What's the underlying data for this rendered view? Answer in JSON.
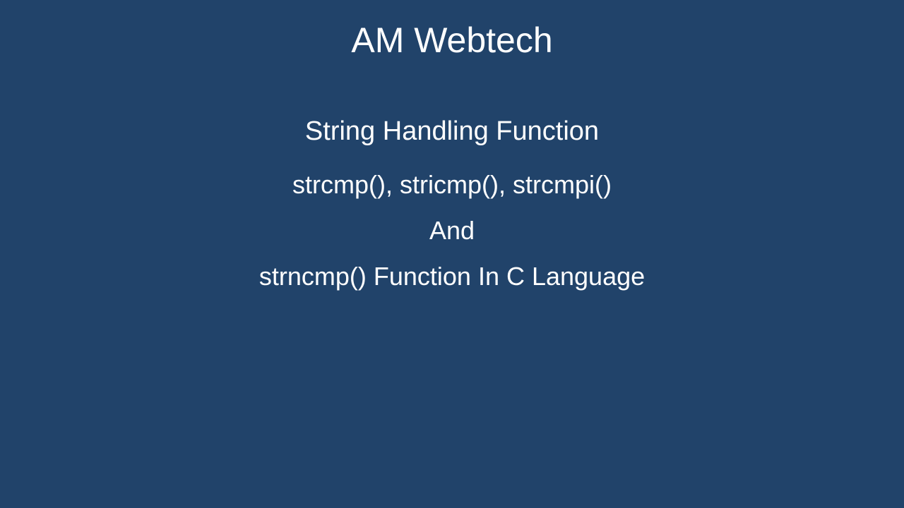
{
  "slide": {
    "title": "AM Webtech",
    "lines": [
      "String Handling Function",
      "strcmp(), stricmp(), strcmpi()",
      "And",
      "strncmp() Function In C Language"
    ],
    "background_color": "#21436a",
    "text_color": "#ffffff",
    "title_fontsize": 50,
    "line_fontsize": 36
  }
}
